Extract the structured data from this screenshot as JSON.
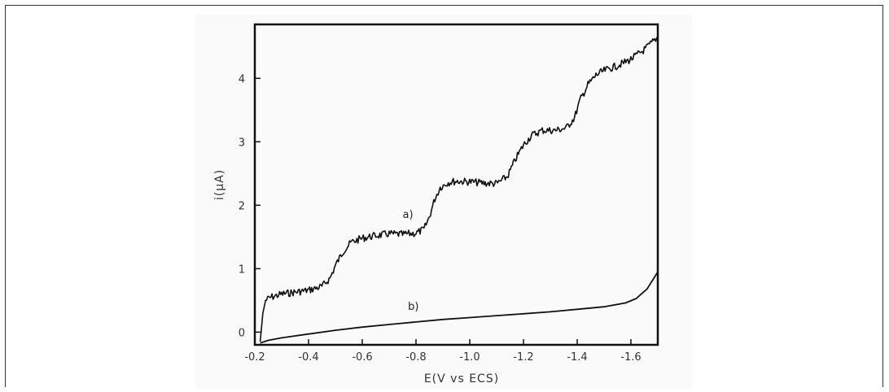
{
  "chart_data": {
    "type": "line",
    "title": "",
    "xlabel": "E(V vs ECS)",
    "ylabel": "i(μA)",
    "xlim": [
      -0.2,
      -1.7
    ],
    "ylim": [
      -0.2,
      4.85
    ],
    "x_ticks": [
      -0.2,
      -0.4,
      -0.6,
      -0.8,
      -1.0,
      -1.2,
      -1.4,
      -1.6
    ],
    "x_tick_labels": [
      "-0.2",
      "-0.4",
      "-0.6",
      "-0.8",
      "-1.0",
      "-1.2",
      "-1.4",
      "-1.6"
    ],
    "y_ticks": [
      0,
      1,
      2,
      3,
      4
    ],
    "y_tick_labels": [
      "0",
      "1",
      "2",
      "3",
      "4"
    ],
    "grid": false,
    "series": [
      {
        "name": "a)",
        "color": "#111111",
        "noisy": true,
        "x": [
          -0.22,
          -0.23,
          -0.24,
          -0.26,
          -0.3,
          -0.35,
          -0.4,
          -0.45,
          -0.48,
          -0.5,
          -0.53,
          -0.56,
          -0.6,
          -0.65,
          -0.7,
          -0.75,
          -0.8,
          -0.83,
          -0.85,
          -0.87,
          -0.89,
          -0.92,
          -0.95,
          -1.0,
          -1.05,
          -1.1,
          -1.14,
          -1.17,
          -1.2,
          -1.23,
          -1.27,
          -1.32,
          -1.36,
          -1.39,
          -1.41,
          -1.44,
          -1.47,
          -1.5,
          -1.55,
          -1.6,
          -1.65,
          -1.7
        ],
        "y": [
          -0.15,
          0.3,
          0.5,
          0.55,
          0.6,
          0.63,
          0.66,
          0.72,
          0.85,
          1.05,
          1.28,
          1.42,
          1.48,
          1.52,
          1.55,
          1.54,
          1.56,
          1.62,
          1.82,
          2.1,
          2.28,
          2.36,
          2.38,
          2.37,
          2.35,
          2.34,
          2.45,
          2.72,
          2.95,
          3.1,
          3.18,
          3.18,
          3.22,
          3.38,
          3.65,
          3.9,
          4.05,
          4.12,
          4.2,
          4.3,
          4.45,
          4.65
        ]
      },
      {
        "name": "b)",
        "color": "#111111",
        "noisy": false,
        "x": [
          -0.22,
          -0.25,
          -0.3,
          -0.4,
          -0.5,
          -0.6,
          -0.7,
          -0.8,
          -0.9,
          -1.0,
          -1.1,
          -1.2,
          -1.3,
          -1.4,
          -1.5,
          -1.58,
          -1.62,
          -1.66,
          -1.7
        ],
        "y": [
          -0.17,
          -0.13,
          -0.09,
          -0.03,
          0.03,
          0.08,
          0.12,
          0.16,
          0.2,
          0.23,
          0.26,
          0.29,
          0.32,
          0.36,
          0.4,
          0.46,
          0.53,
          0.68,
          0.95
        ]
      }
    ],
    "annotations": [
      {
        "text": "a)",
        "x": -0.75,
        "y": 1.8
      },
      {
        "text": "b)",
        "x": -0.77,
        "y": 0.35
      }
    ]
  }
}
